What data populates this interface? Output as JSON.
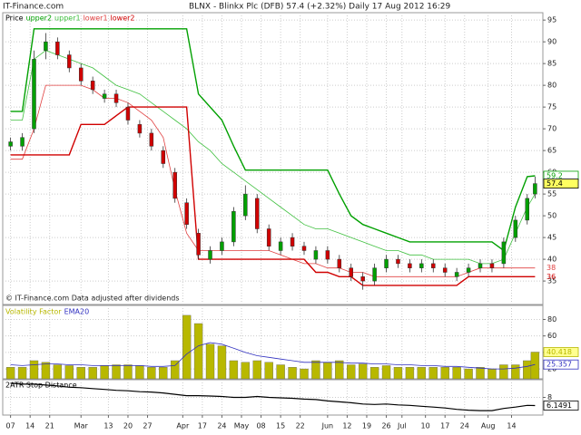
{
  "site": "IT-Finance.com",
  "chart_data": [
    {
      "type": "candlestick",
      "title": "BLNX - Blinkx Plc (DFB)    57.4 (+2.32%)    Daily  17 Aug 2012 16:29",
      "note": "© IT-Finance.com  Data adjusted after dividends",
      "price_name": "Price",
      "up_color": "#00a000",
      "down_color": "#d00000",
      "grid": true,
      "xlim": [
        -2,
        136
      ],
      "ylim": [
        29.6,
        96.7
      ],
      "yticks": [
        35,
        40,
        45,
        50,
        55,
        60,
        65,
        70,
        75,
        80,
        85,
        90,
        95
      ],
      "x": [
        0,
        3,
        6,
        9,
        12,
        15,
        18,
        21,
        24,
        27,
        30,
        33,
        36,
        39,
        42,
        45,
        48,
        51,
        54,
        57,
        60,
        63,
        66,
        69,
        72,
        75,
        78,
        81,
        84,
        87,
        90,
        93,
        96,
        99,
        102,
        105,
        108,
        111,
        114,
        117,
        120,
        123,
        126,
        129,
        132,
        134
      ],
      "open": [
        66,
        66,
        70,
        88,
        90,
        87,
        84,
        81,
        77,
        78,
        75,
        71,
        69,
        65,
        60,
        53,
        46,
        40,
        42,
        44,
        50,
        54,
        47,
        42,
        45,
        43,
        40,
        42,
        40,
        38,
        36,
        35,
        38,
        40,
        39,
        38,
        39,
        38,
        36,
        37,
        38,
        39,
        39,
        45,
        49,
        55
      ],
      "high": [
        68,
        69,
        88,
        92,
        91,
        88,
        85,
        82,
        79,
        79,
        76,
        72,
        70,
        66,
        61,
        54,
        47,
        43,
        45,
        52,
        57,
        55,
        48,
        45,
        46,
        44,
        43,
        43,
        41,
        39,
        37,
        39,
        41,
        41,
        40,
        40,
        40,
        39,
        38,
        39,
        40,
        40,
        45,
        50,
        55,
        59
      ],
      "low": [
        65,
        65,
        69,
        86,
        86,
        83,
        80,
        78,
        76,
        75,
        71,
        68,
        65,
        61,
        53,
        47,
        40,
        39,
        41,
        43,
        49,
        46,
        42,
        41,
        42,
        41,
        39,
        39,
        37,
        35,
        33,
        34,
        37,
        38,
        37,
        37,
        37,
        36,
        35,
        36,
        37,
        37,
        38,
        44,
        48,
        54
      ],
      "close": [
        67,
        68,
        86,
        90,
        87,
        84,
        81,
        79,
        78,
        76,
        72,
        69,
        66,
        62,
        54,
        48,
        41,
        42,
        44,
        51,
        55,
        47,
        43,
        44,
        43,
        42,
        42,
        40,
        38,
        36,
        35,
        38,
        40,
        39,
        38,
        39,
        38,
        37,
        37,
        38,
        39,
        38,
        44,
        49,
        54,
        57.4
      ],
      "close_tag": true,
      "series": [
        {
          "name": "upper2",
          "color": "#00a000",
          "width": 1.4,
          "value_tag": true,
          "values": [
            74,
            74,
            93,
            93,
            93,
            93,
            93,
            93,
            93,
            93,
            93,
            93,
            93,
            93,
            93,
            93,
            78,
            75,
            72,
            66,
            60.5,
            60.5,
            60.5,
            60.5,
            60.5,
            60.5,
            60.5,
            60.5,
            55,
            50,
            48,
            47,
            46,
            45,
            44,
            44,
            44,
            44,
            44,
            44,
            44,
            44,
            42,
            52,
            59,
            59.2
          ]
        },
        {
          "name": "upper1",
          "color": "#40c040",
          "width": 0.8,
          "value_tag": false,
          "values": [
            72,
            72,
            86,
            88,
            87,
            86,
            85,
            84,
            82,
            80,
            79,
            78,
            76,
            74,
            72,
            70,
            67,
            65,
            62,
            60,
            58,
            56,
            54,
            52,
            50,
            48,
            47,
            47,
            46,
            45,
            44,
            43,
            42,
            42,
            41,
            41,
            40,
            40,
            40,
            40,
            39,
            39,
            40,
            46,
            52,
            55
          ]
        },
        {
          "name": "lower1",
          "color": "#e04040",
          "width": 0.8,
          "value_tag": true,
          "values": [
            63,
            63,
            70,
            80,
            80,
            80,
            80,
            79,
            77,
            77,
            76,
            74,
            72,
            68,
            56,
            46,
            42,
            42,
            42,
            42,
            42,
            42,
            42,
            41,
            40,
            39,
            39,
            38,
            38,
            37,
            37,
            36,
            36,
            36,
            36,
            36,
            36,
            36,
            36,
            37,
            38,
            38,
            38,
            38,
            38,
            38
          ]
        },
        {
          "name": "lower2",
          "color": "#d00000",
          "width": 1.4,
          "value_tag": true,
          "values": [
            64,
            64,
            64,
            64,
            64,
            64,
            71,
            71,
            71,
            73,
            75,
            75,
            75,
            75,
            75,
            75,
            40,
            40,
            40,
            40,
            40,
            40,
            40,
            40,
            40,
            40,
            37,
            37,
            36,
            36,
            34,
            34,
            34,
            34,
            34,
            34,
            34,
            34,
            34,
            36,
            36,
            36,
            36,
            36,
            36,
            36
          ]
        }
      ]
    },
    {
      "type": "bar",
      "grid": true,
      "xlim": [
        -2,
        136
      ],
      "ylim": [
        8,
        97
      ],
      "yticks": [
        20,
        40,
        60,
        80
      ],
      "x": [
        0,
        3,
        6,
        9,
        12,
        15,
        18,
        21,
        24,
        27,
        30,
        33,
        36,
        39,
        42,
        45,
        48,
        51,
        54,
        57,
        60,
        63,
        66,
        69,
        72,
        75,
        78,
        81,
        84,
        87,
        90,
        93,
        96,
        99,
        102,
        105,
        108,
        111,
        114,
        117,
        120,
        123,
        126,
        129,
        132,
        134
      ],
      "series": [
        {
          "name": "Volatility Factor",
          "kind": "bar",
          "color": "#b8b800",
          "tag_fill": "#ffff90",
          "values": [
            22,
            22,
            30,
            28,
            25,
            24,
            22,
            22,
            24,
            25,
            25,
            24,
            22,
            22,
            30,
            85,
            75,
            50,
            48,
            30,
            28,
            30,
            28,
            25,
            22,
            20,
            30,
            28,
            30,
            25,
            26,
            22,
            24,
            22,
            22,
            22,
            22,
            22,
            22,
            20,
            22,
            20,
            25,
            25,
            30,
            40.418
          ]
        },
        {
          "name": "EMA20",
          "kind": "line",
          "color": "#3030c0",
          "tag_fill": "#ffffff",
          "values": [
            25,
            24,
            25,
            26,
            26,
            25,
            25,
            24,
            24,
            24,
            24,
            24,
            23,
            23,
            24,
            38,
            48,
            52,
            50,
            45,
            40,
            36,
            34,
            32,
            30,
            28,
            28,
            28,
            28,
            27,
            27,
            26,
            26,
            25,
            25,
            24,
            24,
            23,
            23,
            22,
            21,
            20,
            20,
            21,
            23,
            25.357
          ]
        }
      ]
    },
    {
      "type": "line",
      "grid": true,
      "xlim": [
        -2,
        136
      ],
      "ylim": [
        4,
        12
      ],
      "yticks": [
        8
      ],
      "x": [
        0,
        3,
        6,
        9,
        12,
        15,
        18,
        21,
        24,
        27,
        30,
        33,
        36,
        39,
        42,
        45,
        48,
        51,
        54,
        57,
        60,
        63,
        66,
        69,
        72,
        75,
        78,
        81,
        84,
        87,
        90,
        93,
        96,
        99,
        102,
        105,
        108,
        111,
        114,
        117,
        120,
        123,
        126,
        129,
        132,
        134
      ],
      "xticks": [
        {
          "value": 0,
          "label": "07"
        },
        {
          "value": 5,
          "label": "14"
        },
        {
          "value": 10,
          "label": "21"
        },
        {
          "value": 18,
          "label": "Mar"
        },
        {
          "value": 25,
          "label": "13"
        },
        {
          "value": 30,
          "label": "20"
        },
        {
          "value": 35,
          "label": "27"
        },
        {
          "value": 44,
          "label": "Apr"
        },
        {
          "value": 49,
          "label": "17"
        },
        {
          "value": 54,
          "label": "24"
        },
        {
          "value": 59,
          "label": "May"
        },
        {
          "value": 64,
          "label": "08"
        },
        {
          "value": 69,
          "label": "15"
        },
        {
          "value": 74,
          "label": "22"
        },
        {
          "value": 81,
          "label": "Jun"
        },
        {
          "value": 86,
          "label": "12"
        },
        {
          "value": 91,
          "label": "19"
        },
        {
          "value": 96,
          "label": "26"
        },
        {
          "value": 100,
          "label": "Jul"
        },
        {
          "value": 106,
          "label": "10"
        },
        {
          "value": 111,
          "label": "17"
        },
        {
          "value": 116,
          "label": "24"
        },
        {
          "value": 122,
          "label": "Aug"
        },
        {
          "value": 128,
          "label": "14"
        }
      ],
      "series": [
        {
          "name": "2ATR Stop Distance",
          "color": "#000000",
          "tag_fill": "#ffffff",
          "values": [
            11.2,
            11,
            11,
            10.8,
            10.6,
            10.3,
            10.2,
            10,
            9.8,
            9.6,
            9.5,
            9.3,
            9.2,
            9,
            8.7,
            8.4,
            8.4,
            8.3,
            8.2,
            8,
            8,
            8.2,
            8,
            7.9,
            7.8,
            7.6,
            7.5,
            7.2,
            7,
            6.8,
            6.5,
            6.4,
            6.5,
            6.3,
            6.2,
            6.0,
            5.8,
            5.6,
            5.3,
            5.1,
            5.0,
            5.0,
            5.5,
            5.8,
            6.2,
            6.1491
          ]
        }
      ]
    }
  ]
}
